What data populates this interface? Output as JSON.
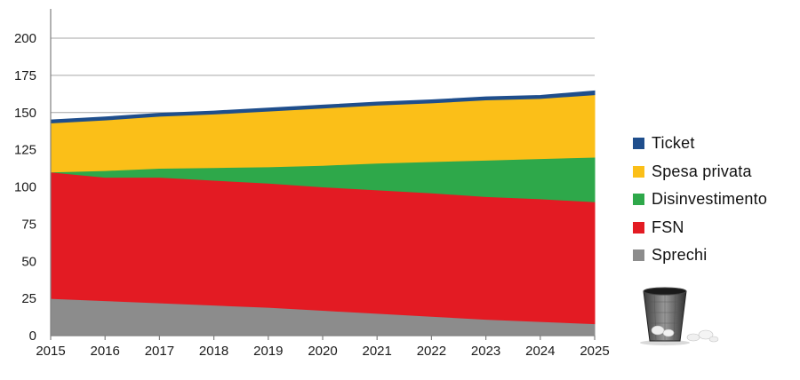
{
  "chart_data": {
    "type": "area",
    "stacked": true,
    "title": "",
    "xlabel": "",
    "ylabel": "",
    "x": [
      2015,
      2016,
      2017,
      2018,
      2019,
      2020,
      2021,
      2022,
      2023,
      2024,
      2025
    ],
    "ylim": [
      0,
      200
    ],
    "yticks": [
      0,
      25,
      50,
      75,
      100,
      125,
      150,
      175,
      200
    ],
    "grid": true,
    "legend_position": "right",
    "series": [
      {
        "name": "Sprechi",
        "color": "#8c8c8c",
        "values": [
          25,
          23.5,
          22,
          20.5,
          19,
          17,
          15,
          13,
          11,
          9.5,
          8
        ]
      },
      {
        "name": "FSN",
        "color": "#e31b23",
        "values": [
          85,
          83,
          84.5,
          84,
          83.5,
          83,
          83,
          83,
          82.5,
          82.5,
          82
        ]
      },
      {
        "name": "Disinvestimento",
        "color": "#2ea84a",
        "values": [
          0,
          4.5,
          6,
          8.5,
          11,
          14.5,
          18,
          21,
          24.5,
          27,
          30
        ]
      },
      {
        "name": "Spesa privata",
        "color": "#fbbf18",
        "values": [
          33,
          34,
          35,
          36,
          37.5,
          38.5,
          39,
          39.5,
          40.5,
          40.5,
          42
        ]
      },
      {
        "name": "Ticket",
        "color": "#1f4e8c",
        "values": [
          2,
          2,
          2,
          2,
          2,
          2,
          2,
          2,
          2,
          2,
          2.5
        ]
      }
    ],
    "legend_order": [
      "Ticket",
      "Spesa privata",
      "Disinvestimento",
      "FSN",
      "Sprechi"
    ]
  },
  "decoration": {
    "icon": "trash-bin-icon"
  }
}
